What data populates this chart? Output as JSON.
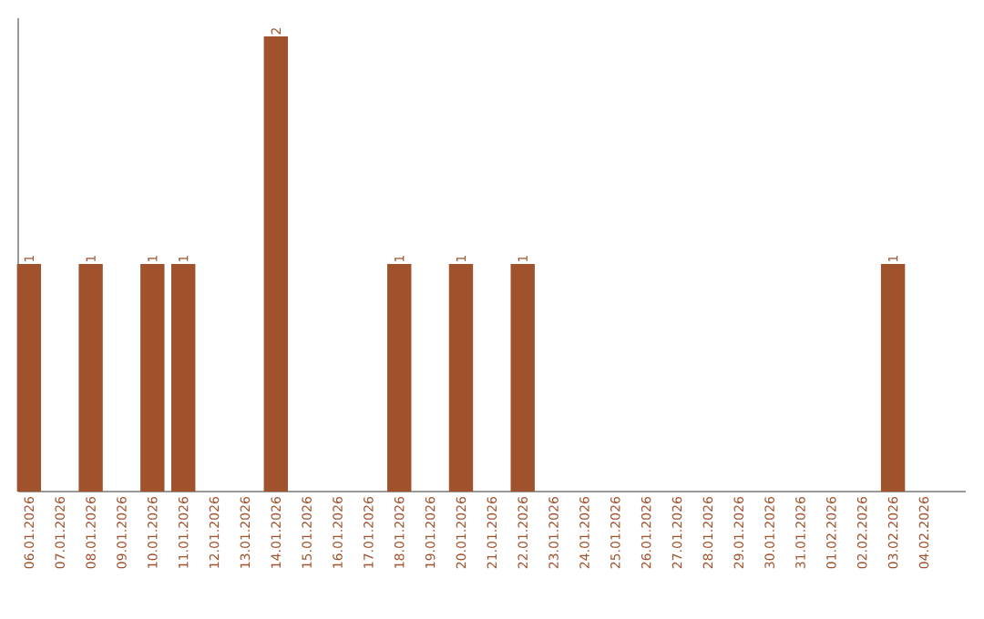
{
  "chart_data": {
    "type": "bar",
    "color": "#a0522d",
    "tick_labels": "x",
    "categories": [
      "06.01.2026",
      "07.01.2026",
      "08.01.2026",
      "09.01.2026",
      "10.01.2026",
      "11.01.2026",
      "12.01.2026",
      "13.01.2026",
      "14.01.2026",
      "15.01.2026",
      "16.01.2026",
      "17.01.2026",
      "18.01.2026",
      "19.01.2026",
      "20.01.2026",
      "21.01.2026",
      "22.01.2026",
      "23.01.2026",
      "24.01.2026",
      "25.01.2026",
      "26.01.2026",
      "27.01.2026",
      "28.01.2026",
      "29.01.2026",
      "30.01.2026",
      "31.01.2026",
      "01.02.2026",
      "02.02.2026",
      "03.02.2026",
      "04.02.2026"
    ],
    "values": [
      1,
      0,
      1,
      0,
      1,
      1,
      0,
      0,
      2,
      0,
      0,
      0,
      1,
      0,
      1,
      0,
      1,
      0,
      0,
      0,
      0,
      0,
      0,
      0,
      0,
      0,
      0,
      0,
      1,
      0
    ],
    "value_labels": [
      "1",
      null,
      "1",
      null,
      "1",
      "1",
      null,
      null,
      "2",
      null,
      null,
      null,
      "1",
      null,
      "1",
      null,
      "1",
      null,
      null,
      null,
      null,
      null,
      null,
      null,
      null,
      null,
      null,
      null,
      "1",
      null
    ]
  }
}
